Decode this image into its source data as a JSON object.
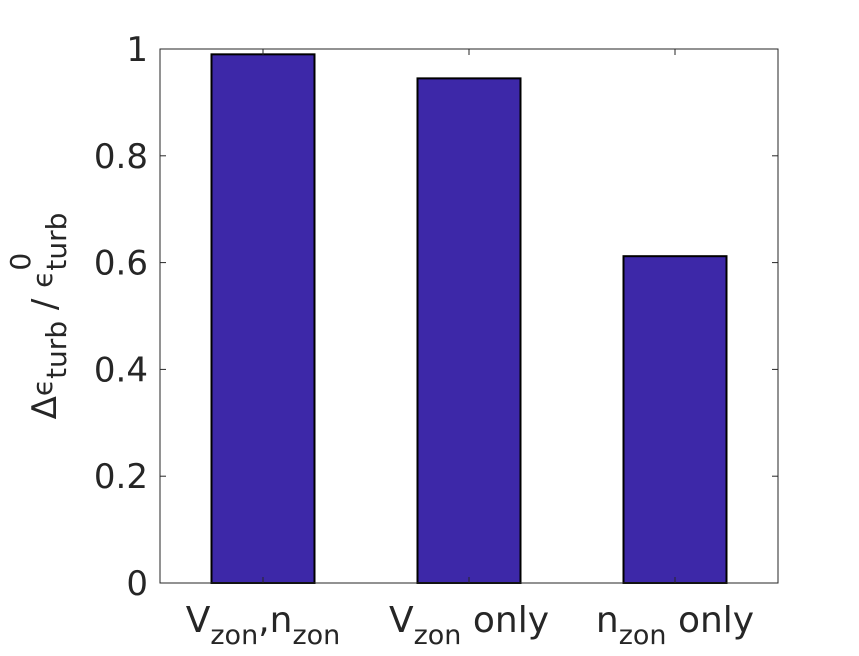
{
  "chart_data": {
    "type": "bar",
    "categories": [
      {
        "base": "V",
        "sub": "zon",
        "mid": ",n",
        "sub2": "zon",
        "tail": ""
      },
      {
        "base": "V",
        "sub": "zon",
        "mid": "",
        "sub2": "",
        "tail": " only"
      },
      {
        "base": "n",
        "sub": "zon",
        "mid": "",
        "sub2": "",
        "tail": " only"
      }
    ],
    "values": [
      0.99,
      0.945,
      0.612
    ],
    "ylim": [
      0,
      1
    ],
    "yticks": [
      0,
      0.2,
      0.4,
      0.6,
      0.8,
      1
    ],
    "ytick_labels": [
      "0",
      "0.2",
      "0.4",
      "0.6",
      "0.8",
      "1"
    ],
    "ylabel": {
      "delta": "Δ",
      "eps1": "ϵ",
      "sub1": "turb",
      "slash": " / ",
      "eps2": "ϵ",
      "sup2": "0",
      "sub2": "turb"
    },
    "grid": false,
    "bar_color": "#3d28a8",
    "edge_color": "#000000"
  }
}
